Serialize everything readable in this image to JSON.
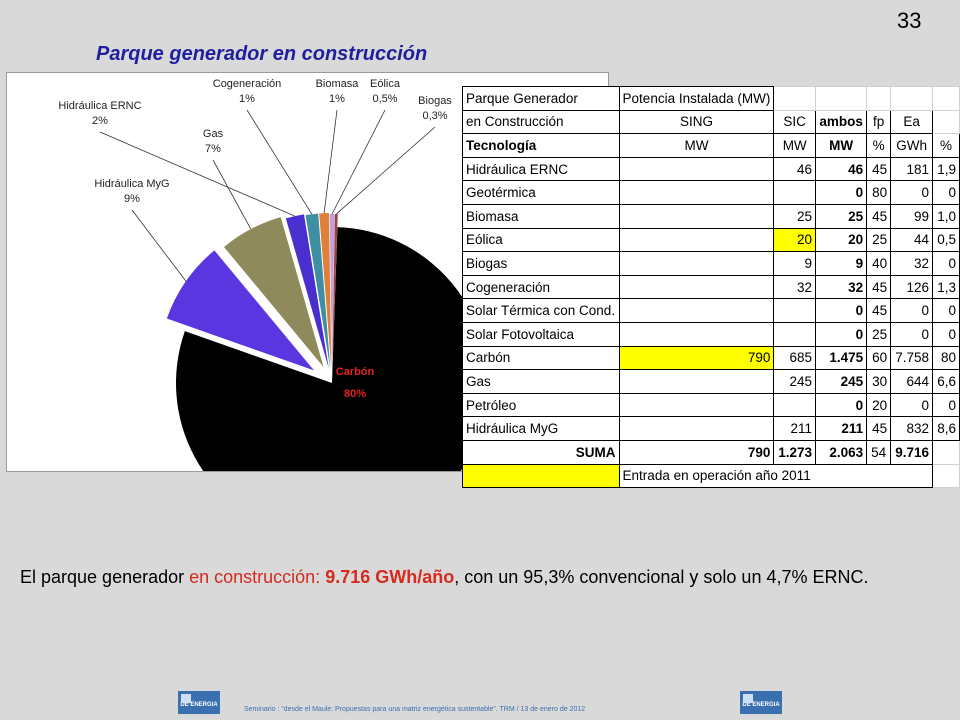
{
  "slide_number": "33",
  "title": "Parque generador en construcción",
  "chart_data": {
    "type": "pie",
    "slices": [
      {
        "label": "Carbón",
        "pct_label": "80%",
        "value": 80,
        "color": "#000000"
      },
      {
        "label": "Hidráulica MyG",
        "pct_label": "9%",
        "value": 8.6,
        "color": "#5a36e0"
      },
      {
        "label": "Gas",
        "pct_label": "7%",
        "value": 6.6,
        "color": "#8f8a5c"
      },
      {
        "label": "Hidráulica ERNC",
        "pct_label": "2%",
        "value": 1.9,
        "color": "#4a2ed0"
      },
      {
        "label": "Cogeneración",
        "pct_label": "1%",
        "value": 1.3,
        "color": "#3f8fa3"
      },
      {
        "label": "Biomasa",
        "pct_label": "1%",
        "value": 1.0,
        "color": "#e07f3a"
      },
      {
        "label": "Eólica",
        "pct_label": "0,5%",
        "value": 0.5,
        "color": "#c2a0d8"
      },
      {
        "label": "Biogas",
        "pct_label": "0,3%",
        "value": 0.3,
        "color": "#a04040"
      }
    ]
  },
  "table": {
    "header_rows": [
      [
        "Parque Generador",
        "Potencia Instalada (MW)",
        "",
        "",
        "",
        "",
        ""
      ],
      [
        "en Construcción",
        "SING",
        "SIC",
        "ambos",
        "fp",
        "Ea",
        ""
      ],
      [
        "Tecnología",
        "MW",
        "MW",
        "MW",
        "%",
        "GWh",
        "%"
      ]
    ],
    "rows": [
      [
        "Hidráulica ERNC",
        "",
        "46",
        "46",
        "45",
        "181",
        "1,9"
      ],
      [
        "Geotérmica",
        "",
        "",
        "0",
        "80",
        "0",
        "0"
      ],
      [
        "Biomasa",
        "",
        "25",
        "25",
        "45",
        "99",
        "1,0"
      ],
      [
        "Eólica",
        "",
        "20",
        "20",
        "25",
        "44",
        "0,5"
      ],
      [
        "Biogas",
        "",
        "9",
        "9",
        "40",
        "32",
        "0"
      ],
      [
        "Cogeneración",
        "",
        "32",
        "32",
        "45",
        "126",
        "1,3"
      ],
      [
        "Solar Térmica con Cond.",
        "",
        "",
        "0",
        "45",
        "0",
        "0"
      ],
      [
        "Solar Fotovoltaica",
        "",
        "",
        "0",
        "25",
        "0",
        "0"
      ],
      [
        "Carbón",
        "790",
        "685",
        "1.475",
        "60",
        "7.758",
        "80"
      ],
      [
        "Gas",
        "",
        "245",
        "245",
        "30",
        "644",
        "6,6"
      ],
      [
        "Petróleo",
        "",
        "",
        "0",
        "20",
        "0",
        "0"
      ],
      [
        "Hidráulica MyG",
        "",
        "211",
        "211",
        "45",
        "832",
        "8,6"
      ]
    ],
    "sum_row": [
      "SUMA",
      "790",
      "1.273",
      "2.063",
      "54",
      "9.716",
      ""
    ],
    "legend_note": "Entrada en operación año 2011",
    "highlight_color": "#ffff00"
  },
  "summary": {
    "part1": "El parque generador ",
    "part2": "en construcción: ",
    "part3": "9.716 GWh/año",
    "part4": ", con un 95,3% convencional y solo un 4,7% ERNC."
  },
  "footer": "Seminario : “desde el Maule: Propuestas para una matriz energética sustentable”.  TRM  /  13 de enero de 2012",
  "logo_text": "DE ENERGIA"
}
